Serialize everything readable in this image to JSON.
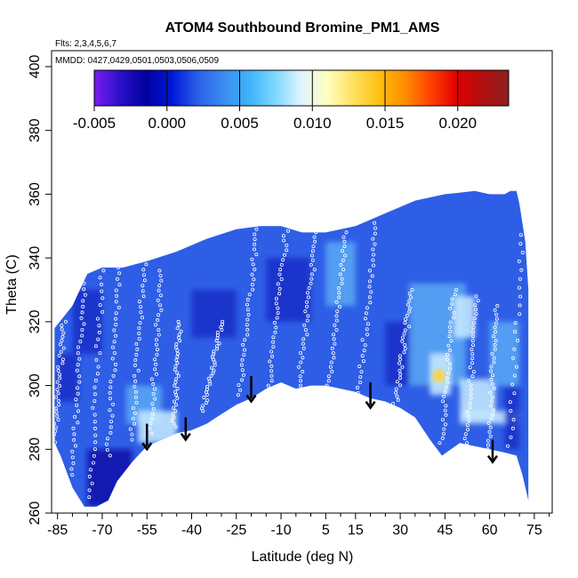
{
  "chart_data": {
    "type": "heatmap",
    "title": "ATOM4 Southbound Bromine_PM1_AMS",
    "subtitle_flights": "Flts: 2,3,4,5,6,7",
    "subtitle_dates": "MMDD: 0427,0429,0501,0503,0506,0509",
    "xlabel": "Latitude (deg N)",
    "ylabel": "Theta (C)",
    "xlim": [
      -87,
      81
    ],
    "ylim": [
      260,
      405
    ],
    "x_ticks": [
      -85,
      -70,
      -55,
      -40,
      -25,
      -10,
      5,
      15,
      30,
      45,
      60,
      75
    ],
    "x_tick_labels": [
      "-85",
      "-70",
      "-55",
      "-40",
      "-25",
      "-10",
      "5",
      "15",
      "30",
      "45",
      "60",
      "75"
    ],
    "y_ticks": [
      260,
      280,
      300,
      320,
      340,
      360,
      380,
      400
    ],
    "y_tick_labels": [
      "260",
      "280",
      "300",
      "320",
      "340",
      "360",
      "380",
      "400"
    ],
    "colorbar": {
      "min": -0.005,
      "max": 0.0235,
      "ticks": [
        -0.005,
        0.0,
        0.005,
        0.01,
        0.015,
        0.02
      ],
      "tick_labels": [
        "-0.005",
        "0.000",
        "0.005",
        "0.010",
        "0.015",
        "0.020"
      ],
      "colors": [
        "#7a1cf0",
        "#2a10c8",
        "#0000a0",
        "#0018d8",
        "#2a60e8",
        "#3b8cf0",
        "#3fb4f8",
        "#7fd8ff",
        "#e0f4ff",
        "#ffffc0",
        "#ffe060",
        "#ffc010",
        "#ff8c00",
        "#ff4000",
        "#e00000",
        "#b01010",
        "#902020"
      ]
    },
    "field_colors": {
      "background": "#2e5ee6",
      "dark": "#1a30c8",
      "very_dark": "#0a10a8",
      "light": "#5aa8f4",
      "pale": "#c8ecff",
      "hotspot": "#ffd040"
    },
    "upper_boundary": [
      [
        -86,
        318
      ],
      [
        -80,
        325
      ],
      [
        -75,
        335
      ],
      [
        -70,
        337
      ],
      [
        -63,
        337
      ],
      [
        -55,
        339
      ],
      [
        -45,
        342
      ],
      [
        -35,
        346
      ],
      [
        -25,
        349
      ],
      [
        -17,
        350
      ],
      [
        -10,
        350
      ],
      [
        -3,
        348
      ],
      [
        5,
        348
      ],
      [
        15,
        350
      ],
      [
        25,
        354
      ],
      [
        35,
        358
      ],
      [
        45,
        360
      ],
      [
        55,
        361
      ],
      [
        60,
        360
      ],
      [
        65,
        360
      ],
      [
        67,
        361
      ],
      [
        69,
        361
      ],
      [
        70,
        357
      ],
      [
        72,
        345
      ],
      [
        73,
        330
      ]
    ],
    "lower_boundary": [
      [
        73,
        264
      ],
      [
        71,
        272
      ],
      [
        69,
        278
      ],
      [
        65,
        279
      ],
      [
        60,
        280
      ],
      [
        55,
        281
      ],
      [
        50,
        282
      ],
      [
        47,
        280
      ],
      [
        44,
        278
      ],
      [
        40,
        283
      ],
      [
        35,
        290
      ],
      [
        30,
        293
      ],
      [
        25,
        295
      ],
      [
        20,
        296
      ],
      [
        15,
        298
      ],
      [
        10,
        299
      ],
      [
        5,
        300
      ],
      [
        0,
        300
      ],
      [
        -5,
        299
      ],
      [
        -10,
        301
      ],
      [
        -15,
        299
      ],
      [
        -20,
        296
      ],
      [
        -25,
        294
      ],
      [
        -30,
        291
      ],
      [
        -35,
        288
      ],
      [
        -40,
        286
      ],
      [
        -45,
        285
      ],
      [
        -50,
        283
      ],
      [
        -55,
        281
      ],
      [
        -60,
        276
      ],
      [
        -65,
        270
      ],
      [
        -68,
        264
      ],
      [
        -72,
        262
      ],
      [
        -76,
        262
      ],
      [
        -80,
        268
      ],
      [
        -84,
        278
      ],
      [
        -86,
        282
      ]
    ],
    "features": [
      {
        "x": [
          -80,
          -70
        ],
        "y": [
          310,
          330
        ],
        "shade": "dark"
      },
      {
        "x": [
          -75,
          -60
        ],
        "y": [
          262,
          280
        ],
        "shade": "very_dark"
      },
      {
        "x": [
          -85,
          -78
        ],
        "y": [
          295,
          310
        ],
        "shade": "dark"
      },
      {
        "x": [
          -62,
          -50
        ],
        "y": [
          288,
          300
        ],
        "shade": "light"
      },
      {
        "x": [
          -58,
          -45
        ],
        "y": [
          282,
          292
        ],
        "shade": "pale"
      },
      {
        "x": [
          -40,
          -25
        ],
        "y": [
          315,
          330
        ],
        "shade": "dark"
      },
      {
        "x": [
          -15,
          0
        ],
        "y": [
          320,
          340
        ],
        "shade": "dark"
      },
      {
        "x": [
          5,
          15
        ],
        "y": [
          325,
          345
        ],
        "shade": "light"
      },
      {
        "x": [
          25,
          35
        ],
        "y": [
          300,
          320
        ],
        "shade": "dark"
      },
      {
        "x": [
          33,
          52
        ],
        "y": [
          300,
          332
        ],
        "shade": "light"
      },
      {
        "x": [
          40,
          47
        ],
        "y": [
          297,
          310
        ],
        "shade": "pale"
      },
      {
        "x": [
          50,
          62
        ],
        "y": [
          290,
          302
        ],
        "shade": "pale"
      },
      {
        "x": [
          50,
          70
        ],
        "y": [
          288,
          292
        ],
        "shade": "pale"
      },
      {
        "x": [
          48,
          55
        ],
        "y": [
          315,
          328
        ],
        "shade": "pale"
      },
      {
        "x": [
          60,
          70
        ],
        "y": [
          300,
          320
        ],
        "shade": "light"
      },
      {
        "x": [
          65,
          70
        ],
        "y": [
          280,
          300
        ],
        "shade": "dark"
      }
    ],
    "hotspot": {
      "x": 43,
      "y": 303
    },
    "flight_tracks": [
      {
        "x0": -86,
        "x1": -83,
        "y0": 281,
        "y1": 320
      },
      {
        "x0": -80,
        "x1": -76,
        "y0": 272,
        "y1": 332
      },
      {
        "x0": -74,
        "x1": -70,
        "y0": 265,
        "y1": 336
      },
      {
        "x0": -68,
        "x1": -64,
        "y0": 278,
        "y1": 337
      },
      {
        "x0": -60,
        "x1": -56,
        "y0": 283,
        "y1": 338
      },
      {
        "x0": -54,
        "x1": -50,
        "y0": 285,
        "y1": 336
      },
      {
        "x0": -46,
        "x1": -44,
        "y0": 287,
        "y1": 320
      },
      {
        "x0": -36,
        "x1": -30,
        "y0": 292,
        "y1": 320
      },
      {
        "x0": -24,
        "x1": -18,
        "y0": 297,
        "y1": 349
      },
      {
        "x0": -14,
        "x1": -8,
        "y0": 300,
        "y1": 350
      },
      {
        "x0": -4,
        "x1": 2,
        "y0": 300,
        "y1": 348
      },
      {
        "x0": 6,
        "x1": 12,
        "y0": 300,
        "y1": 348
      },
      {
        "x0": 16,
        "x1": 22,
        "y0": 296,
        "y1": 351
      },
      {
        "x0": 28,
        "x1": 34,
        "y0": 292,
        "y1": 330
      },
      {
        "x0": 44,
        "x1": 48,
        "y0": 282,
        "y1": 330
      },
      {
        "x0": 52,
        "x1": 56,
        "y0": 282,
        "y1": 328
      },
      {
        "x0": 60,
        "x1": 62,
        "y0": 280,
        "y1": 325
      },
      {
        "x0": 66,
        "x1": 72,
        "y0": 270,
        "y1": 361
      }
    ],
    "arrows": [
      {
        "x": -55,
        "y_top": 288,
        "y_tip": 280
      },
      {
        "x": -42,
        "y_top": 290,
        "y_tip": 283
      },
      {
        "x": -20,
        "y_top": 303,
        "y_tip": 295
      },
      {
        "x": 20,
        "y_top": 301,
        "y_tip": 293
      },
      {
        "x": 61,
        "y_top": 283,
        "y_tip": 276
      }
    ]
  }
}
